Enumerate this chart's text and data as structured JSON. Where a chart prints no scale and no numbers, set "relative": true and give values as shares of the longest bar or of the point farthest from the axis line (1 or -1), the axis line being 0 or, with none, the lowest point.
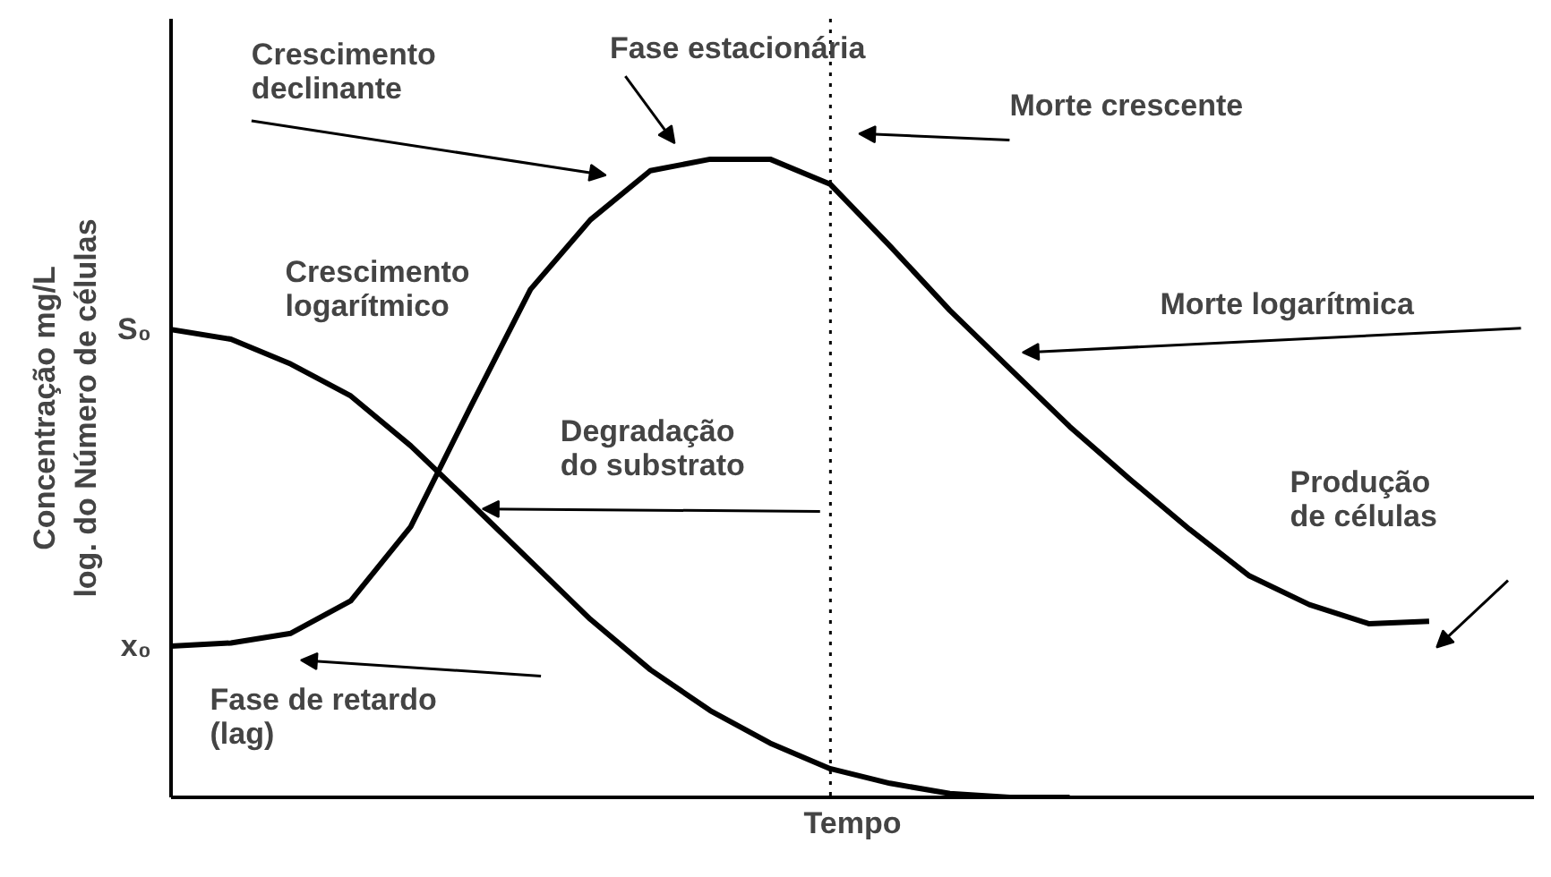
{
  "chart_data": {
    "type": "line",
    "relative": true,
    "xlabel": "Tempo",
    "ylabel": "Concentração mg/L\nlog. do Número de células",
    "categories": [
      null,
      null,
      null,
      null,
      null,
      null,
      null,
      null,
      null,
      null,
      null,
      null,
      null,
      null,
      null,
      null,
      null,
      null,
      null,
      null,
      null,
      null
    ],
    "line_style": "solid",
    "series": [
      {
        "color": "#000000",
        "values": [
          0.237,
          0.242,
          0.257,
          0.308,
          0.424,
          0.612,
          0.796,
          0.905,
          0.982,
          1.0,
          1.0,
          0.961,
          0.864,
          0.763,
          0.672,
          0.581,
          0.499,
          0.42,
          0.347,
          0.302,
          0.272,
          0.276
        ]
      },
      {
        "color": "#000000",
        "values": [
          0.733,
          0.718,
          0.679,
          0.629,
          0.551,
          0.461,
          0.37,
          0.279,
          0.2,
          0.136,
          0.085,
          0.045,
          0.022,
          0.006,
          0,
          0,
          null,
          null,
          null,
          null,
          null,
          null
        ]
      }
    ],
    "annotations": [
      "S₀",
      "x₀",
      "Crescimento\ndeclinante",
      "Fase estacionária",
      "Morte crescente",
      "Crescimento\nlogarítmico",
      "Morte logarítmica",
      "Degradação\ndo substrato",
      "Produção\nde células",
      "Fase de retardo\n(lag)"
    ]
  }
}
